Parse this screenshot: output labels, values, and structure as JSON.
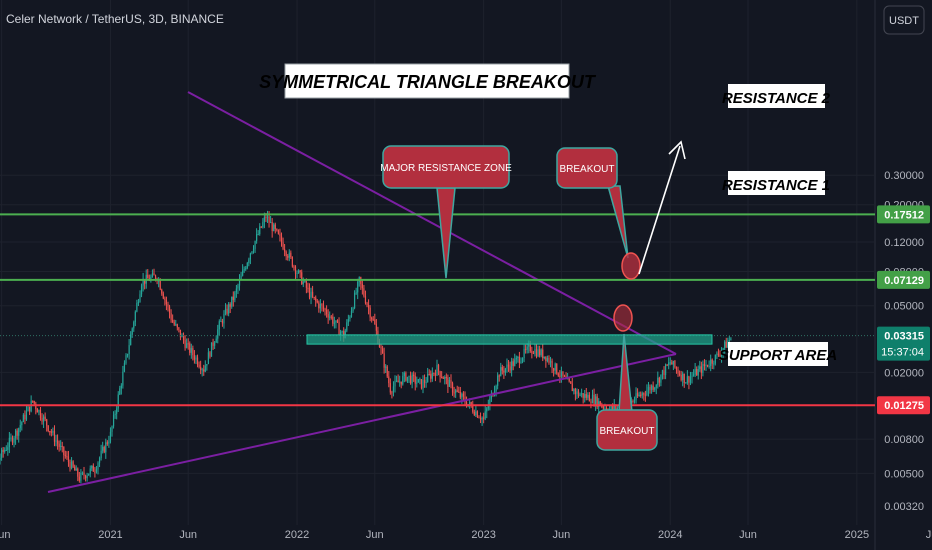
{
  "header": {
    "symbol_title": "Celer Network / TetherUS, 3D, BINANCE",
    "currency_button": "USDT"
  },
  "colors": {
    "background": "#131722",
    "candle_up": "#26a69a",
    "candle_down": "#ef5350",
    "resistance_line": "#4caf50",
    "support_line": "#f23645",
    "triangle_line": "#7b1fa2",
    "zone_fill": "#1fa088",
    "callout_fill": "#b22f3e",
    "axis_text": "#b2b5be"
  },
  "chart_data": {
    "type": "candlestick",
    "y_scale": "log",
    "ylim": [
      0.0032,
      0.4
    ],
    "y_ticks": [
      "0.30000",
      "0.20000",
      "0.12000",
      "0.08000",
      "0.05000",
      "0.03315",
      "0.02000",
      "0.01275",
      "0.00800",
      "0.00500",
      "0.00320"
    ],
    "x_ticks": [
      "Jun",
      "2021",
      "Jun",
      "2022",
      "Jun",
      "2023",
      "Jun",
      "2024",
      "Jun",
      "2025",
      "Jun"
    ],
    "price_labels": [
      {
        "value": 0.17512,
        "text": "0.17512",
        "kind": "resistance"
      },
      {
        "value": 0.07129,
        "text": "0.07129",
        "kind": "resistance"
      },
      {
        "value": 0.03315,
        "text": "0.03315",
        "kind": "current"
      },
      {
        "value": 0.01275,
        "text": "0.01275",
        "kind": "support"
      }
    ],
    "countdown": "15:37:04",
    "horizontal_levels": [
      {
        "name": "RESISTANCE 2",
        "value": 0.17512
      },
      {
        "name": "RESISTANCE 1",
        "value": 0.07129
      },
      {
        "name": "SUPPORT AREA",
        "value": 0.01275
      }
    ],
    "major_resistance_zone": {
      "low": 0.0295,
      "high": 0.0335
    },
    "annotations": {
      "title": "SYMMETRICAL TRIANGLE BREAKOUT",
      "zone_label": "MAJOR RESISTANCE ZONE",
      "breakout_top": "BREAKOUT",
      "breakout_bottom": "BREAKOUT",
      "resistance_2": "RESISTANCE 2",
      "resistance_1": "RESISTANCE 1",
      "support": "SUPPORT AREA"
    },
    "price_path": [
      [
        "2020-04",
        0.0036
      ],
      [
        "2020-05",
        0.0045
      ],
      [
        "2020-06",
        0.0065
      ],
      [
        "2020-07",
        0.009
      ],
      [
        "2020-08",
        0.0135
      ],
      [
        "2020-09",
        0.0095
      ],
      [
        "2020-10",
        0.0065
      ],
      [
        "2020-11",
        0.0047
      ],
      [
        "2020-12",
        0.0054
      ],
      [
        "2021-01",
        0.0085
      ],
      [
        "2021-02",
        0.024
      ],
      [
        "2021-03",
        0.07
      ],
      [
        "2021-04",
        0.075
      ],
      [
        "2021-05",
        0.04
      ],
      [
        "2021-06",
        0.028
      ],
      [
        "2021-07",
        0.021
      ],
      [
        "2021-08",
        0.038
      ],
      [
        "2021-09",
        0.058
      ],
      [
        "2021-10",
        0.105
      ],
      [
        "2021-11",
        0.17
      ],
      [
        "2021-12",
        0.12
      ],
      [
        "2022-01",
        0.08
      ],
      [
        "2022-02",
        0.055
      ],
      [
        "2022-03",
        0.045
      ],
      [
        "2022-04",
        0.033
      ],
      [
        "2022-05",
        0.07
      ],
      [
        "2022-06",
        0.038
      ],
      [
        "2022-07",
        0.016
      ],
      [
        "2022-08",
        0.019
      ],
      [
        "2022-09",
        0.017
      ],
      [
        "2022-10",
        0.021
      ],
      [
        "2022-11",
        0.016
      ],
      [
        "2022-12",
        0.013
      ],
      [
        "2023-01",
        0.0105
      ],
      [
        "2023-02",
        0.02
      ],
      [
        "2023-03",
        0.023
      ],
      [
        "2023-04",
        0.028
      ],
      [
        "2023-05",
        0.025
      ],
      [
        "2023-06",
        0.019
      ],
      [
        "2023-07",
        0.015
      ],
      [
        "2023-08",
        0.014
      ],
      [
        "2023-09",
        0.012
      ],
      [
        "2023-10",
        0.0125
      ],
      [
        "2023-11",
        0.0145
      ],
      [
        "2023-12",
        0.017
      ],
      [
        "2024-01",
        0.023
      ],
      [
        "2024-02",
        0.018
      ],
      [
        "2024-03",
        0.021
      ],
      [
        "2024-04",
        0.025
      ],
      [
        "2024-05",
        0.033
      ]
    ]
  }
}
